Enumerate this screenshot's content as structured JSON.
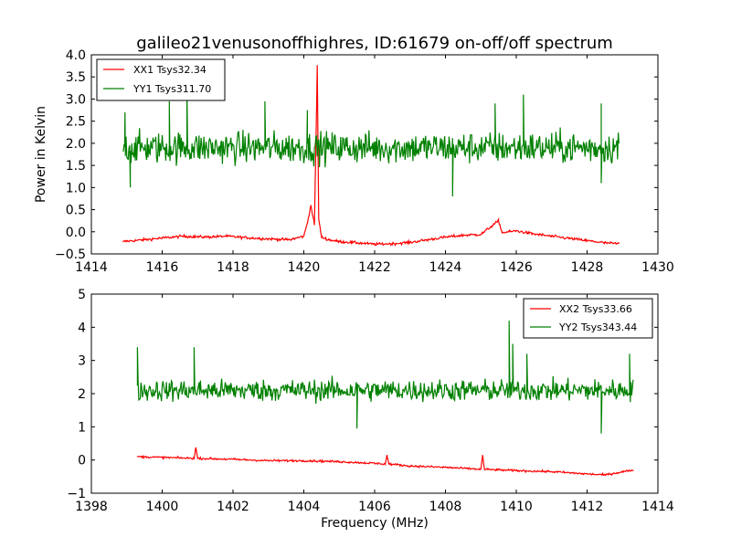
{
  "chart_data": [
    {
      "type": "line",
      "title": "galileo21venusonoffhighres, ID:61679 on-off/off spectrum",
      "xlabel": "",
      "ylabel": "Power in Kelvin",
      "xlim": [
        1414,
        1430
      ],
      "ylim": [
        -0.5,
        4.0
      ],
      "xticks": [
        1414,
        1416,
        1418,
        1420,
        1422,
        1424,
        1426,
        1428,
        1430
      ],
      "xtick_labels": [
        "1414",
        "1416",
        "1418",
        "1420",
        "1422",
        "1424",
        "1426",
        "1428",
        "1430"
      ],
      "yticks": [
        -0.5,
        0.0,
        0.5,
        1.0,
        1.5,
        2.0,
        2.5,
        3.0,
        3.5,
        4.0
      ],
      "ytick_labels": [
        "−0.5",
        "0.0",
        "0.5",
        "1.0",
        "1.5",
        "2.0",
        "2.5",
        "3.0",
        "3.5",
        "4.0"
      ],
      "grid": false,
      "legend_position": "top-left",
      "x_range": [
        1414.9,
        1428.9
      ],
      "series": [
        {
          "name": "XX1 Tsys32.34",
          "color": "#ff0000",
          "x": [
            1414.9,
            1415.5,
            1416.0,
            1416.6,
            1417.2,
            1417.8,
            1418.5,
            1419.0,
            1419.6,
            1420.0,
            1420.1,
            1420.2,
            1420.3,
            1420.38,
            1420.42,
            1420.5,
            1420.7,
            1421.0,
            1421.5,
            1422.0,
            1422.5,
            1423.0,
            1423.5,
            1424.0,
            1424.5,
            1425.0,
            1425.5,
            1425.6,
            1426.0,
            1426.5,
            1427.0,
            1427.5,
            1428.0,
            1428.5,
            1428.9
          ],
          "y": [
            -0.22,
            -0.18,
            -0.14,
            -0.1,
            -0.12,
            -0.1,
            -0.14,
            -0.16,
            -0.18,
            -0.1,
            0.2,
            0.6,
            0.15,
            3.75,
            0.3,
            -0.12,
            -0.18,
            -0.22,
            -0.25,
            -0.28,
            -0.27,
            -0.24,
            -0.18,
            -0.12,
            -0.08,
            -0.06,
            0.25,
            -0.02,
            0.02,
            -0.05,
            -0.1,
            -0.15,
            -0.2,
            -0.25,
            -0.27
          ],
          "noise": 0.03
        },
        {
          "name": "YY1 Tsys311.70",
          "color": "#008000",
          "mean": 1.9,
          "noise": 0.35,
          "spikes": [
            [
              1414.95,
              2.7
            ],
            [
              1416.2,
              2.95
            ],
            [
              1416.7,
              3.2
            ],
            [
              1418.9,
              2.95
            ],
            [
              1420.1,
              2.75
            ],
            [
              1425.4,
              2.9
            ],
            [
              1426.2,
              3.1
            ],
            [
              1428.4,
              2.9
            ],
            [
              1415.1,
              1.0
            ],
            [
              1424.2,
              0.8
            ],
            [
              1428.4,
              1.1
            ]
          ]
        }
      ]
    },
    {
      "type": "line",
      "title": "",
      "xlabel": "Frequency (MHz)",
      "ylabel": "",
      "xlim": [
        1398,
        1414
      ],
      "ylim": [
        -1,
        5
      ],
      "xticks": [
        1398,
        1400,
        1402,
        1404,
        1406,
        1408,
        1410,
        1412,
        1414
      ],
      "xtick_labels": [
        "1398",
        "1400",
        "1402",
        "1404",
        "1406",
        "1408",
        "1410",
        "1412",
        "1414"
      ],
      "yticks": [
        -1,
        0,
        1,
        2,
        3,
        4,
        5
      ],
      "ytick_labels": [
        "−1",
        "0",
        "1",
        "2",
        "3",
        "4",
        "5"
      ],
      "grid": false,
      "legend_position": "top-right",
      "x_range": [
        1399.3,
        1413.3
      ],
      "series": [
        {
          "name": "XX2 Tsys33.66",
          "color": "#ff0000",
          "x": [
            1399.3,
            1400.0,
            1400.9,
            1400.95,
            1401.0,
            1402.0,
            1403.0,
            1404.0,
            1405.0,
            1406.0,
            1406.3,
            1406.35,
            1406.4,
            1407.0,
            1408.0,
            1409.0,
            1409.05,
            1409.1,
            1410.0,
            1411.0,
            1412.0,
            1412.5,
            1413.3
          ],
          "y": [
            0.1,
            0.08,
            0.05,
            0.38,
            0.05,
            0.02,
            -0.02,
            -0.02,
            -0.05,
            -0.1,
            -0.12,
            0.15,
            -0.12,
            -0.18,
            -0.22,
            -0.28,
            0.15,
            -0.28,
            -0.32,
            -0.35,
            -0.42,
            -0.45,
            -0.3
          ],
          "noise": 0.03
        },
        {
          "name": "YY2 Tsys343.44",
          "color": "#008000",
          "mean": 2.1,
          "noise": 0.32,
          "spikes": [
            [
              1399.3,
              3.4
            ],
            [
              1400.9,
              3.4
            ],
            [
              1409.8,
              4.2
            ],
            [
              1409.9,
              3.5
            ],
            [
              1412.4,
              0.8
            ],
            [
              1405.5,
              0.95
            ],
            [
              1410.3,
              3.2
            ],
            [
              1413.2,
              3.2
            ]
          ]
        }
      ]
    }
  ]
}
